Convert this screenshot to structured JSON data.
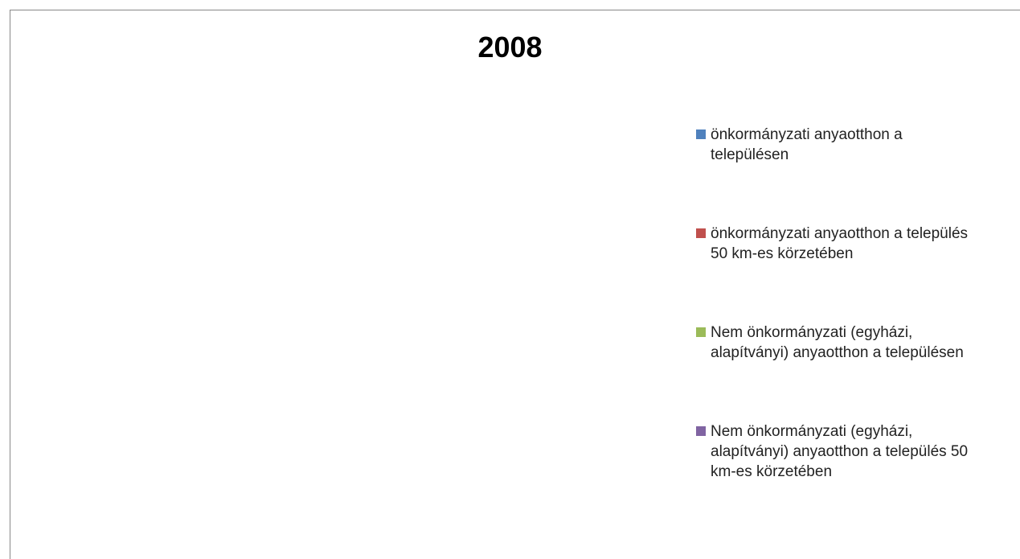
{
  "chart_data": {
    "type": "pie",
    "title": "2008",
    "categories": [
      "önkormányzati anyaotthon a településen",
      "önkormányzati anyaotthon a település 50 km-es körzetében",
      "Nem önkormányzati (egyházi, alapítványi) anyaotthon a településen",
      "Nem önkormányzati (egyházi, alapítványi) anyaotthon a település 50 km-es körzetében"
    ],
    "colors": [
      "#4f81bd",
      "#c0504d",
      "#9bbb59",
      "#8064a2"
    ],
    "legend": "right"
  }
}
